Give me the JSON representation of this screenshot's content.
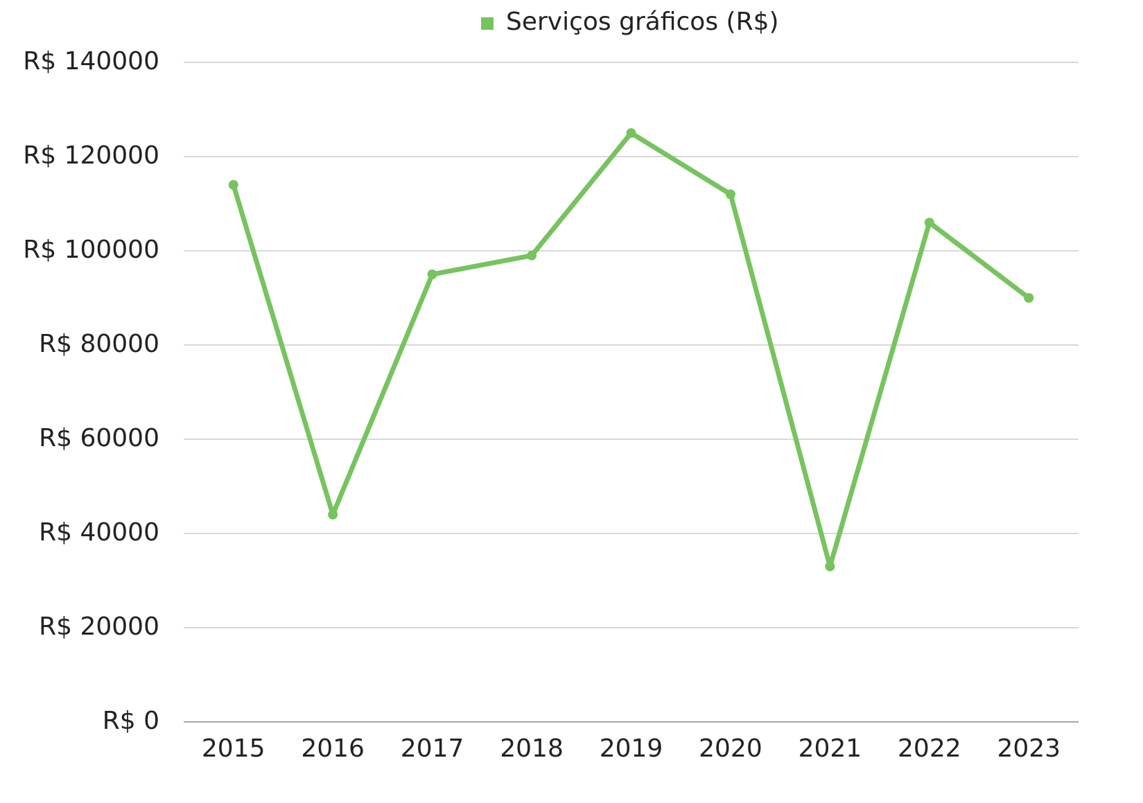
{
  "chart_data": {
    "type": "line",
    "categories": [
      "2015",
      "2016",
      "2017",
      "2018",
      "2019",
      "2020",
      "2021",
      "2022",
      "2023"
    ],
    "series": [
      {
        "name": "Serviços gráficos (R$)",
        "color": "#77c35f",
        "values": [
          114000,
          44000,
          95000,
          99000,
          125000,
          112000,
          33000,
          106000,
          90000
        ]
      }
    ],
    "ylim": [
      0,
      140000
    ],
    "yticks": [
      {
        "value": 0,
        "label": "R$ 0"
      },
      {
        "value": 20000,
        "label": "R$ 20000"
      },
      {
        "value": 40000,
        "label": "R$ 40000"
      },
      {
        "value": 60000,
        "label": "R$ 60000"
      },
      {
        "value": 80000,
        "label": "R$ 80000"
      },
      {
        "value": 100000,
        "label": "R$ 100000"
      },
      {
        "value": 120000,
        "label": "R$ 120000"
      },
      {
        "value": 140000,
        "label": "R$ 140000"
      }
    ],
    "grid": true,
    "legend": "top"
  }
}
